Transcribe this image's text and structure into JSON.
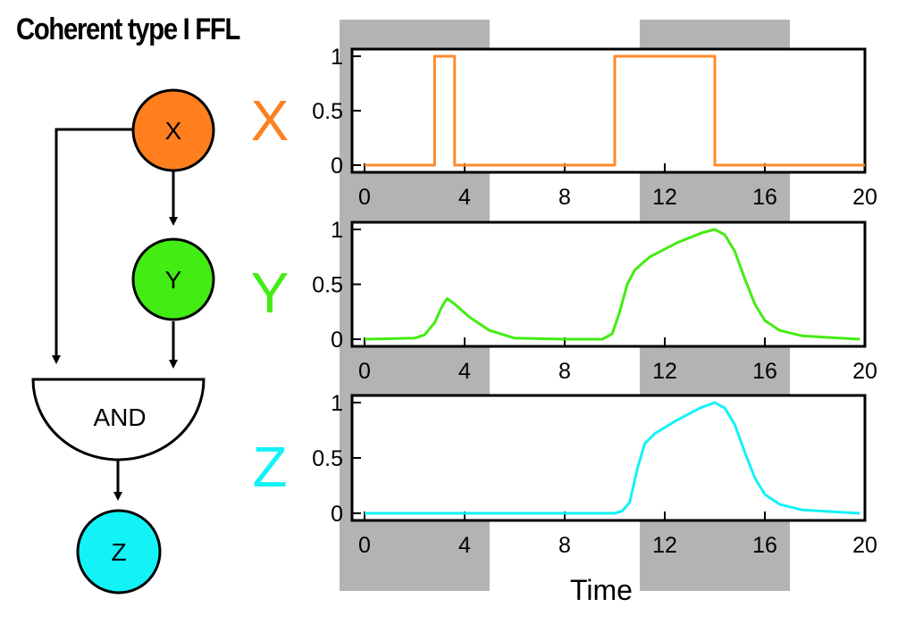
{
  "title": "Coherent type I FFL",
  "nodes": {
    "x": {
      "label": "X",
      "color": "#ff7f1e"
    },
    "y": {
      "label": "Y",
      "color": "#43ec13"
    },
    "z": {
      "label": "Z",
      "color": "#13f2f6"
    },
    "gate": {
      "label": "AND"
    }
  },
  "series_labels": {
    "x": {
      "label": "X",
      "color": "#ff7f1e"
    },
    "y": {
      "label": "Y",
      "color": "#43ec13"
    },
    "z": {
      "label": "Z",
      "color": "#13f2f6"
    }
  },
  "shading": {
    "color": "#b3b3b3"
  },
  "chart_data": [
    {
      "type": "line",
      "series": [
        {
          "name": "X",
          "color": "#ff8a2a",
          "points": [
            [
              0,
              0
            ],
            [
              2.8,
              0
            ],
            [
              2.8,
              1
            ],
            [
              3.6,
              1
            ],
            [
              3.6,
              0
            ],
            [
              10,
              0
            ],
            [
              10,
              1
            ],
            [
              14,
              1
            ],
            [
              14,
              0
            ],
            [
              20,
              0
            ]
          ]
        }
      ],
      "xlim": [
        -0.5,
        20
      ],
      "ylim": [
        0,
        1
      ],
      "xticks": [
        "0",
        "4",
        "8",
        "12",
        "16",
        "20"
      ],
      "yticks": [
        "0",
        "0.5",
        "1"
      ],
      "xlabel": "",
      "shaded_x": [
        [
          -1,
          5
        ],
        [
          11,
          17
        ]
      ]
    },
    {
      "type": "line",
      "series": [
        {
          "name": "Y",
          "color": "#43ec13",
          "points": [
            [
              0,
              0
            ],
            [
              2,
              0.01
            ],
            [
              2.4,
              0.04
            ],
            [
              2.8,
              0.15
            ],
            [
              3.1,
              0.3
            ],
            [
              3.3,
              0.37
            ],
            [
              3.6,
              0.32
            ],
            [
              4.2,
              0.2
            ],
            [
              5,
              0.08
            ],
            [
              6,
              0.01
            ],
            [
              8,
              0
            ],
            [
              9.5,
              0
            ],
            [
              9.9,
              0.05
            ],
            [
              10.2,
              0.25
            ],
            [
              10.5,
              0.5
            ],
            [
              10.8,
              0.63
            ],
            [
              11.4,
              0.75
            ],
            [
              12.5,
              0.88
            ],
            [
              13.5,
              0.97
            ],
            [
              14,
              1
            ],
            [
              14.4,
              0.95
            ],
            [
              14.8,
              0.8
            ],
            [
              15.2,
              0.55
            ],
            [
              15.6,
              0.32
            ],
            [
              16,
              0.17
            ],
            [
              16.6,
              0.08
            ],
            [
              17.5,
              0.03
            ],
            [
              19,
              0.01
            ],
            [
              19.8,
              0
            ]
          ]
        }
      ],
      "xlim": [
        -0.5,
        20
      ],
      "ylim": [
        0,
        1
      ],
      "xticks": [
        "0",
        "4",
        "8",
        "12",
        "16",
        "20"
      ],
      "yticks": [
        "0",
        "0.5",
        "1"
      ],
      "xlabel": "",
      "shaded_x": [
        [
          -1,
          5
        ],
        [
          11,
          17
        ]
      ]
    },
    {
      "type": "line",
      "series": [
        {
          "name": "Z",
          "color": "#13f2f6",
          "points": [
            [
              0,
              0
            ],
            [
              6,
              0
            ],
            [
              10,
              0
            ],
            [
              10.3,
              0.02
            ],
            [
              10.6,
              0.1
            ],
            [
              10.9,
              0.4
            ],
            [
              11.2,
              0.63
            ],
            [
              11.6,
              0.72
            ],
            [
              12.4,
              0.83
            ],
            [
              13.4,
              0.95
            ],
            [
              14,
              1
            ],
            [
              14.4,
              0.95
            ],
            [
              14.8,
              0.8
            ],
            [
              15.2,
              0.55
            ],
            [
              15.6,
              0.32
            ],
            [
              16,
              0.17
            ],
            [
              16.6,
              0.08
            ],
            [
              17.5,
              0.03
            ],
            [
              19,
              0.01
            ],
            [
              19.8,
              0
            ]
          ]
        }
      ],
      "xlim": [
        -0.5,
        20
      ],
      "ylim": [
        0,
        1
      ],
      "xticks": [
        "0",
        "4",
        "8",
        "12",
        "16",
        "20"
      ],
      "yticks": [
        "0",
        "0.5",
        "1"
      ],
      "xlabel": "Time",
      "shaded_x": [
        [
          -1,
          5
        ],
        [
          11,
          17
        ]
      ]
    }
  ]
}
